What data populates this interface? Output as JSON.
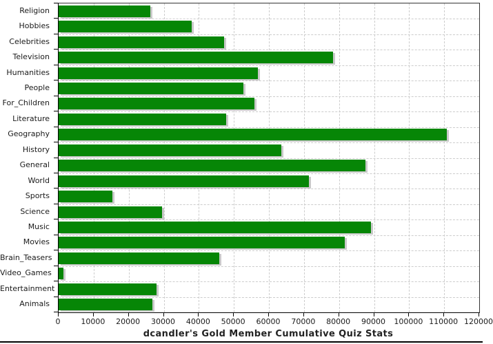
{
  "chart_data": {
    "type": "bar",
    "orientation": "horizontal",
    "title": "dcandler's Gold Member Cumulative Quiz Stats",
    "categories": [
      "Religion",
      "Hobbies",
      "Celebrities",
      "Television",
      "Humanities",
      "People",
      "For_Children",
      "Literature",
      "Geography",
      "History",
      "General",
      "World",
      "Sports",
      "Science",
      "Music",
      "Movies",
      "Brain_Teasers",
      "Video_Games",
      "Entertainment",
      "Animals"
    ],
    "values": [
      26200,
      38000,
      47200,
      78300,
      56900,
      52700,
      55900,
      47800,
      110800,
      63500,
      87500,
      71500,
      15300,
      29500,
      89100,
      81600,
      45800,
      1400,
      27900,
      26800
    ],
    "xlabel": "",
    "ylabel": "",
    "xlim": [
      0,
      120000
    ],
    "x_tick_interval": 10000,
    "x_tick_labels": [
      "0",
      "10000",
      "20000",
      "30000",
      "40000",
      "50000",
      "60000",
      "70000",
      "80000",
      "90000",
      "100000",
      "110000",
      "120000"
    ],
    "grid": "dashed",
    "legend": "none",
    "bar_color": "#068606",
    "bar_shadow_color": "#c9c9c9",
    "grid_color": "#cccccc",
    "axis_color": "#000000"
  }
}
